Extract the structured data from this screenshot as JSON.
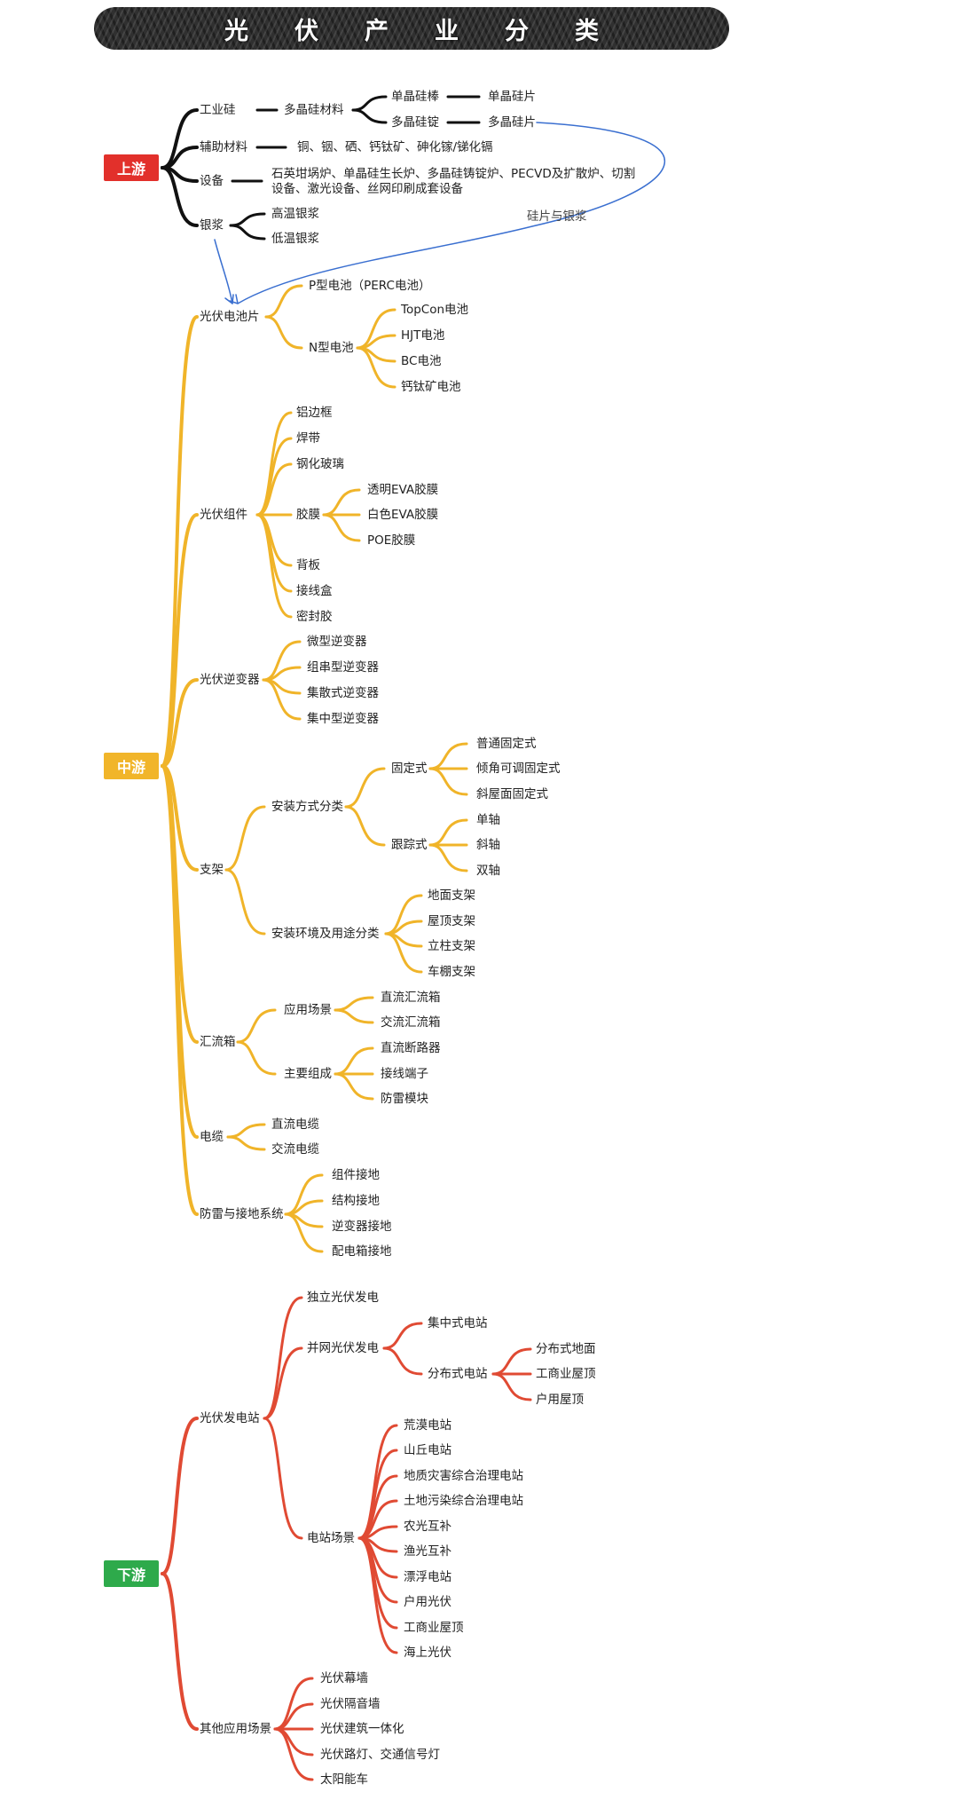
{
  "title": "光伏产业分类",
  "colors": {
    "upstream": "#111111",
    "midstream": "#f0b429",
    "downstream": "#e04a33",
    "arrow": "#3a6fd0"
  },
  "stages": {
    "upstream": "上游",
    "midstream": "中游",
    "downstream": "下游"
  },
  "upstream": {
    "industrial_silicon": "工业硅",
    "polysilicon": "多晶硅材料",
    "mono_rod": "单晶硅棒",
    "mono_wafer": "单晶硅片",
    "poly_ingot": "多晶硅锭",
    "poly_wafer": "多晶硅片",
    "aux_materials": "辅助材料",
    "aux_materials_detail": "铜、铟、硒、钙钛矿、砷化镓/锑化镉",
    "equipment": "设备",
    "equipment_detail_1": "石英坩埚炉、单晶硅生长炉、多晶硅铸锭炉、PECVD及扩散炉、切割",
    "equipment_detail_2": "设备、激光设备、丝网印刷成套设备",
    "silver_paste": "银浆",
    "high_temp_paste": "高温银浆",
    "low_temp_paste": "低温银浆",
    "wafer_paste_note": "硅片与银浆"
  },
  "midstream": {
    "cell": "光伏电池片",
    "p_type": "P型电池（PERC电池）",
    "n_type": "N型电池",
    "n_types": [
      "TopCon电池",
      "HJT电池",
      "BC电池",
      "钙钛矿电池"
    ],
    "module": "光伏组件",
    "module_items_a": [
      "铝边框",
      "焊带",
      "钢化玻璃"
    ],
    "film": "胶膜",
    "films": [
      "透明EVA胶膜",
      "白色EVA胶膜",
      "POE胶膜"
    ],
    "module_items_b": [
      "背板",
      "接线盒",
      "密封胶"
    ],
    "inverter": "光伏逆变器",
    "inverters": [
      "微型逆变器",
      "组串型逆变器",
      "集散式逆变器",
      "集中型逆变器"
    ],
    "bracket": "支架",
    "install_method": "安装方式分类",
    "fixed": "固定式",
    "fixed_types": [
      "普通固定式",
      "倾角可调固定式",
      "斜屋面固定式"
    ],
    "tracking": "跟踪式",
    "tracking_types": [
      "单轴",
      "斜轴",
      "双轴"
    ],
    "install_env": "安装环境及用途分类",
    "env_types": [
      "地面支架",
      "屋顶支架",
      "立柱支架",
      "车棚支架"
    ],
    "combiner": "汇流箱",
    "scenario": "应用场景",
    "scenario_types": [
      "直流汇流箱",
      "交流汇流箱"
    ],
    "composition": "主要组成",
    "composition_types": [
      "直流断路器",
      "接线端子",
      "防雷模块"
    ],
    "cable": "电缆",
    "cables": [
      "直流电缆",
      "交流电缆"
    ],
    "grounding": "防雷与接地系统",
    "groundings": [
      "组件接地",
      "结构接地",
      "逆变器接地",
      "配电箱接地"
    ]
  },
  "downstream": {
    "station": "光伏发电站",
    "standalone": "独立光伏发电",
    "grid": "并网光伏发电",
    "centralized": "集中式电站",
    "distributed": "分布式电站",
    "distributed_types": [
      "分布式地面",
      "工商业屋顶",
      "户用屋顶"
    ],
    "scene": "电站场景",
    "scenes": [
      "荒漠电站",
      "山丘电站",
      "地质灾害综合治理电站",
      "土地污染综合治理电站",
      "农光互补",
      "渔光互补",
      "漂浮电站",
      "户用光伏",
      "工商业屋顶",
      "海上光伏"
    ],
    "other": "其他应用场景",
    "others": [
      "光伏幕墙",
      "光伏隔音墙",
      "光伏建筑一体化",
      "光伏路灯、交通信号灯",
      "太阳能车"
    ]
  }
}
